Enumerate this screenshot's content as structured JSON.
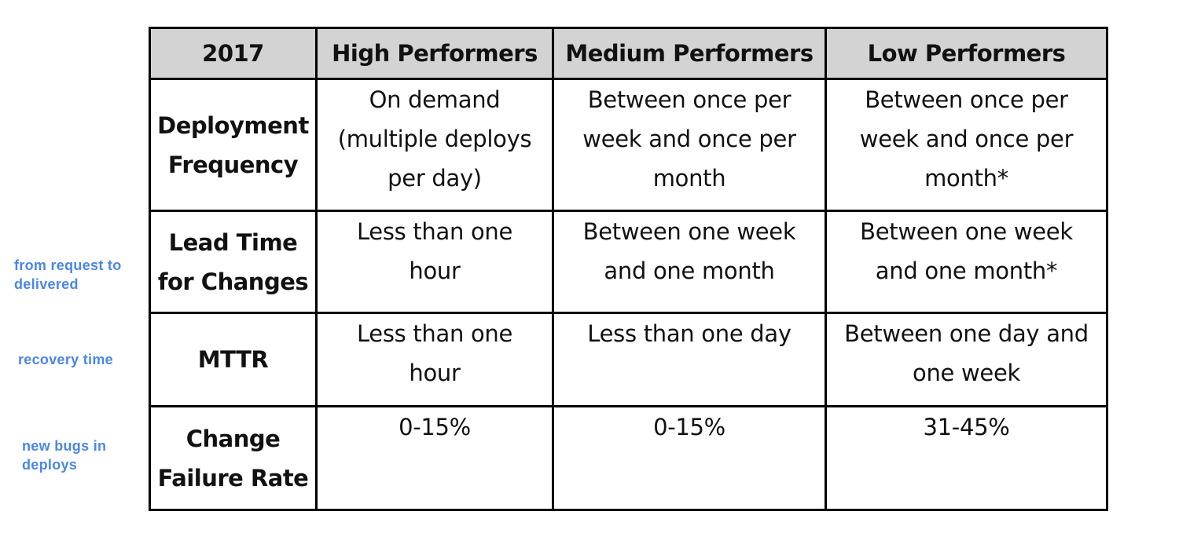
{
  "annotations": {
    "lead_time": "from request  to\ndelivered",
    "mttr": "recovery time",
    "change_failure": "new bugs in\ndeploys"
  },
  "table": {
    "headers": [
      "2017",
      "High Performers",
      "Medium Performers",
      "Low Performers"
    ],
    "rows": [
      {
        "label": "Deployment\nFrequency",
        "cells": [
          "On demand\n(multiple deploys\nper day)",
          "Between once per\nweek and once per\nmonth",
          "Between once per\nweek and once per\nmonth*"
        ]
      },
      {
        "label": "Lead Time\nfor Changes",
        "cells": [
          "Less than one\nhour",
          "Between one week\nand one month",
          "Between one week\nand one month*"
        ]
      },
      {
        "label": "MTTR",
        "cells": [
          "Less than one\nhour",
          "Less than one day",
          "Between one day and\none week"
        ]
      },
      {
        "label": "Change\nFailure Rate",
        "cells": [
          "0-15%",
          "0-15%",
          "31-45%"
        ]
      }
    ]
  },
  "colors": {
    "annotation": "#4a86e8",
    "header_background": "#d3d3d3",
    "border": "#000000"
  }
}
